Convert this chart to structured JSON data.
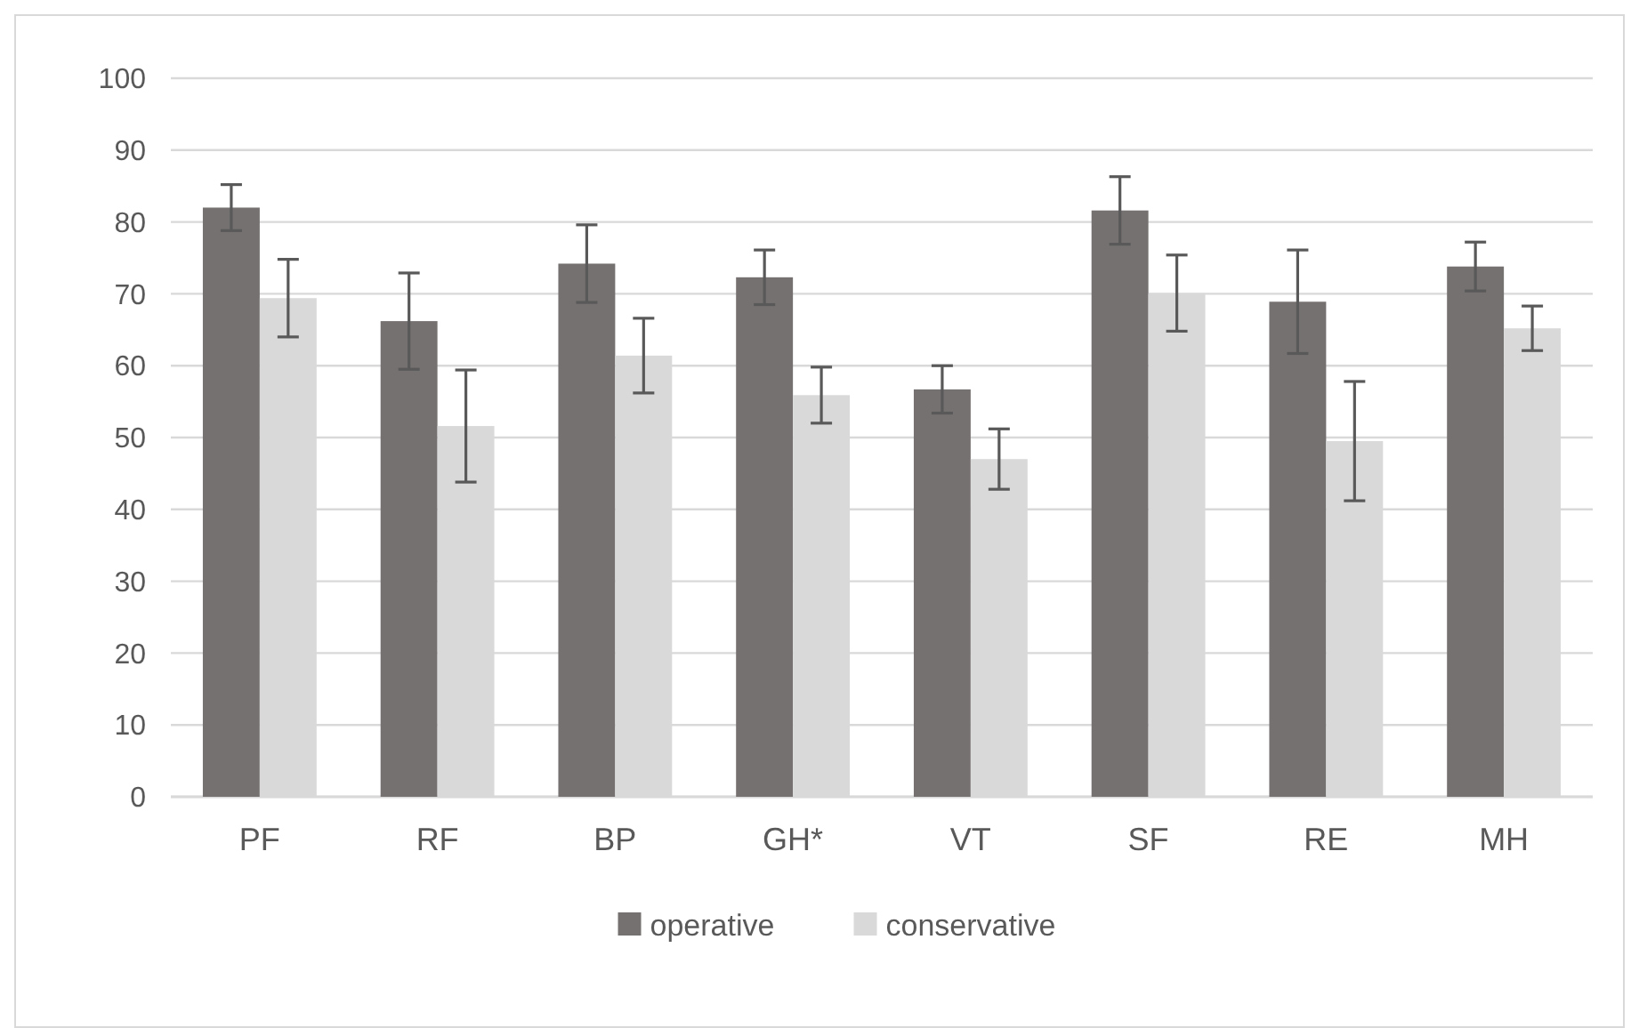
{
  "chart_data": {
    "type": "bar",
    "categories": [
      "PF",
      "RF",
      "BP",
      "GH*",
      "VT",
      "SF",
      "RE",
      "MH"
    ],
    "series": [
      {
        "name": "operative",
        "color": "#767171",
        "values": [
          82,
          66.2,
          74.2,
          72.3,
          56.7,
          81.6,
          68.9,
          73.8
        ],
        "errors": [
          3.2,
          6.7,
          5.4,
          3.8,
          3.3,
          4.7,
          7.2,
          3.4
        ]
      },
      {
        "name": "conservative",
        "color": "#d9d9d9",
        "values": [
          69.4,
          51.6,
          61.4,
          55.9,
          47,
          70.1,
          49.5,
          65.2
        ],
        "errors": [
          5.4,
          7.8,
          5.2,
          3.9,
          4.2,
          5.3,
          8.3,
          3.1
        ]
      }
    ],
    "ylim": [
      0,
      100
    ],
    "yticks": [
      0,
      10,
      20,
      30,
      40,
      50,
      60,
      70,
      80,
      90,
      100
    ],
    "grid": "y",
    "legend": "bottom"
  }
}
